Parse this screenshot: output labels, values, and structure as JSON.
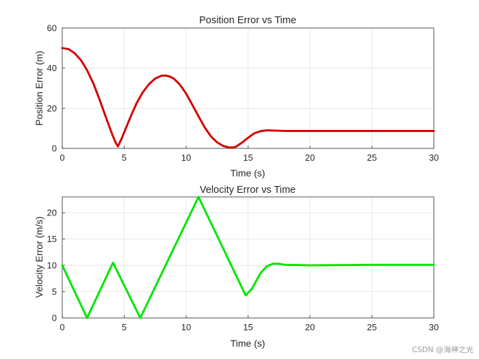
{
  "watermark": "CSDN @海神之光",
  "chart_data": [
    {
      "type": "line",
      "title": "Position Error vs Time",
      "xlabel": "Time (s)",
      "ylabel": "Position Error (m)",
      "xlim": [
        0,
        30
      ],
      "ylim": [
        0,
        60
      ],
      "xticks": [
        0,
        5,
        10,
        15,
        20,
        25,
        30
      ],
      "yticks": [
        0,
        20,
        40,
        60
      ],
      "grid": true,
      "color": "#d40000",
      "series": [
        {
          "x": [
            0,
            0.5,
            1,
            1.5,
            2,
            2.5,
            3,
            3.5,
            4,
            4.3,
            4.5,
            4.8,
            5.2,
            5.6,
            6,
            6.5,
            7,
            7.5,
            8,
            8.3,
            8.6,
            9,
            9.5,
            10,
            10.5,
            11,
            11.5,
            12,
            12.5,
            13,
            13.5,
            13.8,
            14,
            14.5,
            15,
            15.5,
            16,
            16.5,
            17,
            18,
            20,
            25,
            30
          ],
          "y": [
            50,
            49.5,
            47.5,
            44,
            39,
            32.5,
            24.5,
            16,
            7.5,
            3,
            1,
            5,
            11,
            17,
            22.5,
            28,
            32,
            34.8,
            36.2,
            36.3,
            36,
            34.8,
            31.8,
            27.3,
            21.8,
            16,
            10.5,
            6,
            3,
            1.2,
            0.4,
            0.5,
            0.8,
            2.8,
            5.3,
            7.5,
            8.6,
            9,
            8.9,
            8.7,
            8.7,
            8.7,
            8.7
          ]
        }
      ]
    },
    {
      "type": "line",
      "title": "Velocity Error vs Time",
      "xlabel": "Time (s)",
      "ylabel": "Velocity Error (m/s)",
      "xlim": [
        0,
        30
      ],
      "ylim": [
        0,
        23
      ],
      "xticks": [
        0,
        5,
        10,
        15,
        20,
        25,
        30
      ],
      "yticks": [
        0,
        5,
        10,
        15,
        20
      ],
      "grid": true,
      "color": "#00e600",
      "series": [
        {
          "x": [
            0,
            2,
            4.1,
            6.3,
            11,
            14.8,
            15.3,
            16,
            16.5,
            17,
            17.5,
            18,
            20,
            25,
            30
          ],
          "y": [
            10,
            0,
            10.5,
            0,
            23,
            4.3,
            5.5,
            8.5,
            9.8,
            10.3,
            10.3,
            10.1,
            10,
            10.1,
            10.1
          ]
        }
      ]
    }
  ]
}
